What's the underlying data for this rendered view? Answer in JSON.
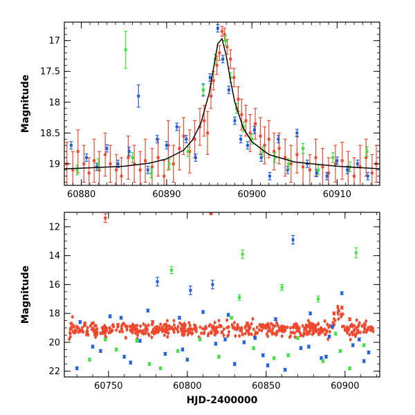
{
  "chart_data": [
    {
      "type": "scatter",
      "title": "",
      "xlabel": "",
      "ylabel": "Magnitude",
      "xlim": [
        60878,
        60915
      ],
      "ylim": [
        19.35,
        16.7
      ],
      "y_inverted": true,
      "xticks": [
        "60880",
        "60890",
        "60900",
        "60910"
      ],
      "yticks": [
        "17",
        "17.5",
        "18",
        "18.5",
        "19"
      ],
      "colors": {
        "red": "#f0472c",
        "blue": "#1f5fe0",
        "green": "#3ee23e",
        "model": "#000000"
      },
      "model": {
        "x": [
          60878,
          60880,
          60885,
          60888,
          60890,
          60892,
          60893,
          60894,
          60895,
          60895.5,
          60896,
          60896.5,
          60897,
          60897.5,
          60898,
          60899,
          60900,
          60902,
          60905,
          60910,
          60915
        ],
        "y": [
          19.08,
          19.07,
          19.04,
          18.99,
          18.92,
          18.78,
          18.62,
          18.35,
          17.85,
          17.45,
          17.05,
          16.97,
          17.25,
          17.65,
          18.0,
          18.42,
          18.64,
          18.85,
          18.97,
          19.04,
          19.08
        ]
      },
      "series": [
        {
          "color": "red",
          "x": [
            60878.3,
            60879.0,
            60879.6,
            60880.3,
            60880.9,
            60881.5,
            60882.1,
            60882.8,
            60883.4,
            60884.1,
            60884.7,
            60885.5,
            60886.2,
            60886.9,
            60887.5,
            60888.3,
            60889.0,
            60889.7,
            60890.2,
            60890.8,
            60891.5,
            60892.0,
            60892.7,
            60893.3,
            60893.9,
            60894.4,
            60894.8,
            60895.2,
            60895.5,
            60895.9,
            60896.2,
            60896.5,
            60896.8,
            60897.1,
            60897.5,
            60897.9,
            60898.4,
            60898.8,
            60899.3,
            60899.8,
            60900.4,
            60901.0,
            60901.5,
            60902.0,
            60902.6,
            60903.2,
            60903.9,
            60904.6,
            60905.3,
            60906.0,
            60906.8,
            60907.5,
            60908.3,
            60909.0,
            60909.8,
            60910.6,
            60911.3,
            60912.0,
            60912.7,
            60913.4,
            60914.1,
            60914.6
          ],
          "y": [
            19.0,
            19.1,
            18.8,
            19.0,
            19.15,
            18.95,
            19.1,
            18.85,
            19.0,
            19.1,
            19.2,
            18.9,
            19.0,
            19.1,
            18.95,
            19.05,
            18.9,
            19.2,
            18.7,
            19.0,
            18.75,
            18.55,
            18.8,
            18.6,
            18.4,
            18.3,
            18.5,
            17.9,
            17.65,
            17.4,
            17.2,
            16.85,
            16.9,
            17.1,
            17.3,
            17.6,
            17.95,
            18.2,
            18.3,
            18.5,
            18.35,
            18.55,
            18.7,
            18.6,
            18.8,
            18.75,
            18.9,
            19.0,
            18.85,
            19.05,
            19.1,
            18.9,
            19.05,
            19.15,
            19.0,
            18.95,
            19.1,
            19.2,
            19.05,
            18.9,
            19.15,
            19.0
          ],
          "err": [
            0.35,
            0.3,
            0.35,
            0.3,
            0.25,
            0.35,
            0.3,
            0.35,
            0.3,
            0.25,
            0.3,
            0.35,
            0.3,
            0.3,
            0.35,
            0.3,
            0.3,
            0.25,
            0.4,
            0.3,
            0.35,
            0.3,
            0.35,
            0.3,
            0.3,
            0.25,
            0.35,
            0.2,
            0.15,
            0.15,
            0.12,
            0.08,
            0.1,
            0.12,
            0.15,
            0.15,
            0.2,
            0.25,
            0.25,
            0.3,
            0.25,
            0.3,
            0.3,
            0.3,
            0.3,
            0.25,
            0.3,
            0.3,
            0.3,
            0.3,
            0.25,
            0.3,
            0.3,
            0.25,
            0.3,
            0.3,
            0.3,
            0.3,
            0.35,
            0.3,
            0.3,
            0.3
          ]
        },
        {
          "color": "blue",
          "x": [
            60878.8,
            60880.6,
            60881.8,
            60883.0,
            60884.3,
            60885.6,
            60886.7,
            60887.8,
            60888.9,
            60890.0,
            60891.2,
            60892.3,
            60893.4,
            60894.3,
            60895.1,
            60896.0,
            60896.6,
            60897.3,
            60898.0,
            60898.7,
            60899.5,
            60900.3,
            60901.1,
            60902.1,
            60903.1,
            60904.2,
            60905.3,
            60906.5,
            60907.6,
            60908.8,
            60910.0,
            60911.2,
            60912.4,
            60913.6
          ],
          "y": [
            18.7,
            18.9,
            19.05,
            18.75,
            19.0,
            18.8,
            17.9,
            19.1,
            18.6,
            18.7,
            18.4,
            18.6,
            18.9,
            17.8,
            17.6,
            16.8,
            17.3,
            17.8,
            18.3,
            18.6,
            18.7,
            18.45,
            18.9,
            19.2,
            18.6,
            19.1,
            18.5,
            19.0,
            19.15,
            19.2,
            18.95,
            19.1,
            19.0,
            19.2
          ],
          "err": [
            0.06,
            0.06,
            0.06,
            0.06,
            0.06,
            0.07,
            0.18,
            0.06,
            0.06,
            0.06,
            0.06,
            0.06,
            0.06,
            0.1,
            0.06,
            0.06,
            0.06,
            0.06,
            0.06,
            0.06,
            0.06,
            0.06,
            0.06,
            0.06,
            0.06,
            0.06,
            0.06,
            0.06,
            0.06,
            0.06,
            0.06,
            0.06,
            0.06,
            0.06
          ]
        },
        {
          "color": "green",
          "x": [
            60879.5,
            60882.0,
            60885.2,
            60886.0,
            60888.2,
            60890.3,
            60892.5,
            60894.3,
            60895.7,
            60896.9,
            60897.5,
            60898.2,
            60899.0,
            60900.0,
            60901.3,
            60902.7,
            60904.3,
            60906.0,
            60907.8,
            60909.5,
            60911.5,
            60913.5
          ],
          "y": [
            19.1,
            19.0,
            17.15,
            18.9,
            19.15,
            19.0,
            18.8,
            17.8,
            17.3,
            17.0,
            17.6,
            18.1,
            18.4,
            18.6,
            18.8,
            18.9,
            19.0,
            18.75,
            19.1,
            18.9,
            19.05,
            18.8
          ],
          "err": [
            0.08,
            0.08,
            0.3,
            0.08,
            0.08,
            0.08,
            0.08,
            0.08,
            0.08,
            0.08,
            0.08,
            0.08,
            0.08,
            0.08,
            0.08,
            0.08,
            0.08,
            0.08,
            0.08,
            0.08,
            0.08,
            0.08
          ]
        }
      ]
    },
    {
      "type": "scatter",
      "title": "",
      "xlabel": "HJD-2400000",
      "ylabel": "Magnitude",
      "xlim": [
        60722,
        60922
      ],
      "ylim": [
        22.4,
        11.0
      ],
      "y_inverted": true,
      "xticks": [
        "60750",
        "60800",
        "60850",
        "60900"
      ],
      "yticks": [
        "12",
        "14",
        "16",
        "18",
        "20",
        "22"
      ],
      "colors": {
        "red": "#f0472c",
        "blue": "#1f5fe0",
        "green": "#3ee23e"
      },
      "band": {
        "color": "red",
        "x_start": 60725,
        "x_end": 60918,
        "y_center": 19.1,
        "half_width": 0.45
      },
      "series": [
        {
          "color": "red",
          "x": [
            60748,
            60815,
            60728,
            60735,
            60742,
            60756,
            60765,
            60778,
            60790,
            60805,
            60822,
            60838,
            60852,
            60868,
            60880,
            60893,
            60898,
            60903,
            60908
          ],
          "y": [
            11.4,
            11.1,
            18.9,
            18.7,
            19.3,
            18.8,
            19.2,
            18.6,
            19.0,
            18.9,
            19.3,
            18.7,
            19.0,
            18.8,
            19.1,
            18.0,
            17.6,
            18.4,
            19.2
          ],
          "err": [
            0.3,
            0.05,
            0.1,
            0.1,
            0.1,
            0.1,
            0.1,
            0.1,
            0.1,
            0.1,
            0.1,
            0.1,
            0.1,
            0.1,
            0.1,
            0.1,
            0.1,
            0.1,
            0.1
          ]
        },
        {
          "color": "blue",
          "x": [
            60867,
            60816,
            60781,
            60802,
            60732,
            60740,
            60751,
            60760,
            60770,
            60775,
            60786,
            60795,
            60800,
            60810,
            60818,
            60826,
            60830,
            60843,
            60848,
            60856,
            60862,
            60872,
            60878,
            60885,
            60890,
            60898,
            60905,
            60912,
            60730,
            60745,
            60764,
            60797,
            60824,
            60851,
            60877,
            60892,
            60909,
            60915,
            60758,
            60836,
            60888
          ],
          "y": [
            12.9,
            16.0,
            15.8,
            16.4,
            18.6,
            20.3,
            18.2,
            21.0,
            19.9,
            17.8,
            20.8,
            18.3,
            21.2,
            17.9,
            20.1,
            18.1,
            21.5,
            19.7,
            20.9,
            18.4,
            21.9,
            20.4,
            18.0,
            21.1,
            19.6,
            16.6,
            20.2,
            21.3,
            21.8,
            20.6,
            21.4,
            20.5,
            19.8,
            21.6,
            20.3,
            18.9,
            19.8,
            20.7,
            18.3,
            20.0,
            21.0
          ],
          "err": [
            0.3,
            0.3,
            0.3,
            0.3,
            0.1,
            0.1,
            0.1,
            0.1,
            0.1,
            0.1,
            0.1,
            0.1,
            0.1,
            0.1,
            0.1,
            0.1,
            0.1,
            0.1,
            0.1,
            0.1,
            0.1,
            0.1,
            0.1,
            0.1,
            0.1,
            0.1,
            0.1,
            0.1,
            0.1,
            0.1,
            0.1,
            0.1,
            0.1,
            0.1,
            0.1,
            0.1,
            0.1,
            0.1,
            0.1,
            0.1,
            0.1
          ]
        },
        {
          "color": "green",
          "x": [
            60835,
            60907,
            60790,
            60833,
            60860,
            60883,
            60738,
            60755,
            60768,
            60783,
            60794,
            60808,
            60820,
            60842,
            60855,
            60870,
            60886,
            60897,
            60903,
            60912,
            60748,
            60776,
            60828,
            60864,
            60894
          ],
          "y": [
            13.9,
            13.8,
            15.0,
            16.9,
            16.2,
            17.0,
            21.2,
            20.5,
            19.9,
            21.8,
            20.6,
            19.8,
            21.0,
            20.4,
            21.1,
            19.7,
            21.3,
            20.6,
            21.8,
            20.2,
            19.8,
            21.5,
            18.3,
            20.9,
            19.4
          ],
          "err": [
            0.3,
            0.35,
            0.25,
            0.2,
            0.2,
            0.2,
            0.1,
            0.1,
            0.1,
            0.1,
            0.1,
            0.1,
            0.1,
            0.1,
            0.1,
            0.1,
            0.1,
            0.1,
            0.1,
            0.1,
            0.1,
            0.1,
            0.1,
            0.1,
            0.1
          ]
        }
      ]
    }
  ]
}
